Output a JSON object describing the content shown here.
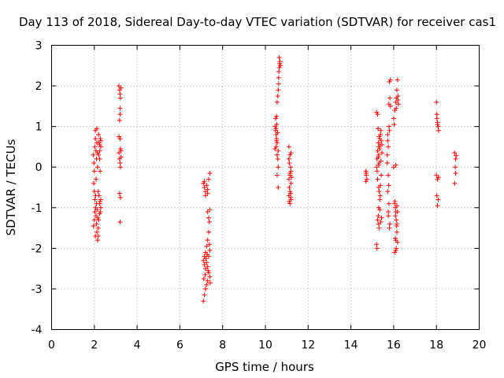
{
  "chart_data": {
    "type": "scatter",
    "title": "Day 113 of 2018, Sidereal Day-to-day VTEC variation (SDTVAR) for receiver cas1",
    "xlabel": "GPS time / hours",
    "ylabel": "SDTVAR / TECUs",
    "xlim": [
      0,
      20
    ],
    "ylim": [
      -4,
      3
    ],
    "xticks": [
      0,
      2,
      4,
      6,
      8,
      10,
      12,
      14,
      16,
      18,
      20
    ],
    "yticks": [
      -4,
      -3,
      -2,
      -1,
      0,
      1,
      2,
      3
    ],
    "grid": true,
    "marker": "+",
    "color": "#ff0000",
    "series": [
      {
        "name": "SDTVAR",
        "points": [
          [
            1.95,
            0.3
          ],
          [
            1.98,
            0.1
          ],
          [
            2.0,
            -0.1
          ],
          [
            2.02,
            0.5
          ],
          [
            2.05,
            0.9
          ],
          [
            2.05,
            0.7
          ],
          [
            2.08,
            0.4
          ],
          [
            2.1,
            0.2
          ],
          [
            2.12,
            0.6
          ],
          [
            2.15,
            0.0
          ],
          [
            1.97,
            -0.4
          ],
          [
            2.0,
            -0.6
          ],
          [
            2.03,
            -0.8
          ],
          [
            2.06,
            -1.0
          ],
          [
            2.08,
            -1.2
          ],
          [
            2.1,
            -1.4
          ],
          [
            2.12,
            -1.6
          ],
          [
            2.15,
            -1.8
          ],
          [
            2.18,
            -1.5
          ],
          [
            2.2,
            -1.3
          ],
          [
            2.0,
            -1.3
          ],
          [
            1.96,
            -1.45
          ],
          [
            2.02,
            -1.1
          ],
          [
            2.06,
            -0.7
          ],
          [
            2.1,
            -0.9
          ],
          [
            2.13,
            -1.05
          ],
          [
            2.16,
            -1.25
          ],
          [
            2.05,
            -1.7
          ],
          [
            2.18,
            -1.7
          ],
          [
            2.08,
            -0.3
          ],
          [
            2.2,
            0.8
          ],
          [
            2.22,
            0.6
          ],
          [
            2.25,
            0.4
          ],
          [
            2.28,
            0.7
          ],
          [
            2.3,
            0.5
          ],
          [
            2.25,
            0.2
          ],
          [
            2.27,
            -0.1
          ],
          [
            2.3,
            0.65
          ],
          [
            2.2,
            0.3
          ],
          [
            2.24,
            0.55
          ],
          [
            2.22,
            -0.7
          ],
          [
            2.25,
            -0.9
          ],
          [
            2.28,
            -1.1
          ],
          [
            2.3,
            -1.0
          ],
          [
            2.26,
            -0.85
          ],
          [
            2.24,
            -1.15
          ],
          [
            2.3,
            -0.8
          ],
          [
            2.18,
            -0.6
          ],
          [
            2.15,
            0.35
          ],
          [
            2.12,
            0.95
          ],
          [
            3.15,
            2.0
          ],
          [
            3.18,
            1.9
          ],
          [
            3.2,
            1.8
          ],
          [
            3.22,
            1.7
          ],
          [
            3.25,
            1.95
          ],
          [
            3.2,
            1.45
          ],
          [
            3.18,
            1.15
          ],
          [
            3.15,
            0.75
          ],
          [
            3.2,
            0.7
          ],
          [
            3.22,
            0.45
          ],
          [
            3.25,
            0.4
          ],
          [
            3.18,
            0.2
          ],
          [
            3.2,
            0.1
          ],
          [
            3.22,
            0.0
          ],
          [
            3.25,
            0.25
          ],
          [
            3.18,
            -0.65
          ],
          [
            3.22,
            -0.75
          ],
          [
            3.2,
            -1.35
          ],
          [
            3.15,
            0.35
          ],
          [
            3.2,
            1.3
          ],
          [
            7.1,
            -0.4
          ],
          [
            7.15,
            -0.5
          ],
          [
            7.2,
            -0.6
          ],
          [
            7.25,
            -0.45
          ],
          [
            7.3,
            -0.55
          ],
          [
            7.35,
            -0.3
          ],
          [
            7.4,
            -0.15
          ],
          [
            7.2,
            -0.7
          ],
          [
            7.3,
            -0.65
          ],
          [
            7.15,
            -0.35
          ],
          [
            7.3,
            -1.1
          ],
          [
            7.35,
            -1.25
          ],
          [
            7.38,
            -1.35
          ],
          [
            7.4,
            -1.05
          ],
          [
            7.35,
            -1.6
          ],
          [
            7.3,
            -1.8
          ],
          [
            7.25,
            -1.95
          ],
          [
            7.2,
            -2.1
          ],
          [
            7.15,
            -2.2
          ],
          [
            7.1,
            -2.3
          ],
          [
            7.15,
            -2.4
          ],
          [
            7.2,
            -2.5
          ],
          [
            7.25,
            -2.35
          ],
          [
            7.3,
            -2.45
          ],
          [
            7.35,
            -2.6
          ],
          [
            7.4,
            -2.7
          ],
          [
            7.3,
            -2.8
          ],
          [
            7.25,
            -2.9
          ],
          [
            7.2,
            -3.0
          ],
          [
            7.15,
            -3.15
          ],
          [
            7.1,
            -3.3
          ],
          [
            7.35,
            -2.2
          ],
          [
            7.4,
            -2.05
          ],
          [
            7.38,
            -1.9
          ],
          [
            7.42,
            -2.85
          ],
          [
            7.28,
            -2.15
          ],
          [
            7.22,
            -2.25
          ],
          [
            7.32,
            -2.55
          ],
          [
            7.18,
            -2.65
          ],
          [
            7.12,
            -2.75
          ],
          [
            10.45,
            1.0
          ],
          [
            10.48,
            0.9
          ],
          [
            10.5,
            0.8
          ],
          [
            10.52,
            0.7
          ],
          [
            10.55,
            0.6
          ],
          [
            10.5,
            0.5
          ],
          [
            10.48,
            1.2
          ],
          [
            10.52,
            1.25
          ],
          [
            10.55,
            0.3
          ],
          [
            10.58,
            0.2
          ],
          [
            10.6,
            0.0
          ],
          [
            10.55,
            -0.2
          ],
          [
            10.6,
            -0.5
          ],
          [
            10.55,
            1.6
          ],
          [
            10.6,
            1.9
          ],
          [
            10.62,
            2.2
          ],
          [
            10.65,
            2.45
          ],
          [
            10.68,
            2.6
          ],
          [
            10.65,
            2.7
          ],
          [
            10.7,
            2.5
          ],
          [
            10.58,
            1.75
          ],
          [
            10.62,
            2.05
          ],
          [
            10.5,
            0.95
          ],
          [
            10.53,
            1.05
          ],
          [
            10.57,
            0.85
          ],
          [
            10.45,
            0.45
          ],
          [
            10.63,
            2.35
          ],
          [
            10.67,
            2.55
          ],
          [
            10.52,
            0.65
          ],
          [
            10.6,
            0.4
          ],
          [
            11.1,
            0.5
          ],
          [
            11.15,
            0.3
          ],
          [
            11.12,
            0.1
          ],
          [
            11.18,
            0.0
          ],
          [
            11.2,
            -0.1
          ],
          [
            11.15,
            -0.2
          ],
          [
            11.1,
            -0.3
          ],
          [
            11.2,
            -0.4
          ],
          [
            11.15,
            -0.6
          ],
          [
            11.1,
            -0.7
          ],
          [
            11.2,
            -0.8
          ],
          [
            11.15,
            -0.9
          ],
          [
            11.18,
            -0.75
          ],
          [
            11.12,
            -0.5
          ],
          [
            11.22,
            -0.25
          ],
          [
            11.1,
            0.2
          ],
          [
            11.2,
            0.35
          ],
          [
            11.15,
            -0.15
          ],
          [
            11.12,
            -0.85
          ],
          [
            11.18,
            -0.65
          ],
          [
            14.7,
            -0.1
          ],
          [
            14.72,
            -0.2
          ],
          [
            14.75,
            -0.3
          ],
          [
            14.7,
            -0.35
          ],
          [
            14.72,
            -0.15
          ],
          [
            15.2,
            0.0
          ],
          [
            15.22,
            0.2
          ],
          [
            15.25,
            0.4
          ],
          [
            15.28,
            0.6
          ],
          [
            15.3,
            0.5
          ],
          [
            15.3,
            0.3
          ],
          [
            15.32,
            0.1
          ],
          [
            15.35,
            0.7
          ],
          [
            15.38,
            0.8
          ],
          [
            15.4,
            0.9
          ],
          [
            15.42,
            0.65
          ],
          [
            15.35,
            0.45
          ],
          [
            15.28,
            0.25
          ],
          [
            15.22,
            -0.1
          ],
          [
            15.25,
            -0.3
          ],
          [
            15.3,
            -0.5
          ],
          [
            15.32,
            -0.6
          ],
          [
            15.35,
            -0.8
          ],
          [
            15.3,
            -1.0
          ],
          [
            15.28,
            -1.2
          ],
          [
            15.25,
            -1.3
          ],
          [
            15.3,
            -1.4
          ],
          [
            15.32,
            -1.5
          ],
          [
            15.2,
            -1.9
          ],
          [
            15.22,
            -2.0
          ],
          [
            15.25,
            1.3
          ],
          [
            15.2,
            1.35
          ],
          [
            15.4,
            0.15
          ],
          [
            15.42,
            -0.2
          ],
          [
            15.38,
            -0.45
          ],
          [
            15.35,
            -1.05
          ],
          [
            15.4,
            -1.35
          ],
          [
            15.45,
            0.55
          ],
          [
            15.45,
            0.35
          ],
          [
            15.33,
            0.75
          ],
          [
            15.27,
            0.95
          ],
          [
            15.37,
            -0.7
          ],
          [
            15.43,
            -1.25
          ],
          [
            15.3,
            0.05
          ],
          [
            15.36,
            0.55
          ],
          [
            15.7,
            0.3
          ],
          [
            15.75,
            0.5
          ],
          [
            15.72,
            0.8
          ],
          [
            15.78,
            1.0
          ],
          [
            15.7,
            0.1
          ],
          [
            15.75,
            -0.2
          ],
          [
            15.72,
            -0.6
          ],
          [
            15.78,
            -0.9
          ],
          [
            15.75,
            -1.2
          ],
          [
            15.8,
            -1.5
          ],
          [
            15.85,
            1.5
          ],
          [
            15.82,
            1.7
          ],
          [
            15.8,
            2.1
          ],
          [
            15.85,
            2.15
          ],
          [
            15.78,
            1.55
          ],
          [
            15.82,
            -1.4
          ],
          [
            15.75,
            -1.1
          ],
          [
            15.72,
            0.65
          ],
          [
            15.8,
            0.9
          ],
          [
            15.77,
            -0.45
          ],
          [
            16.0,
            0.0
          ],
          [
            16.05,
            -0.9
          ],
          [
            16.08,
            -1.0
          ],
          [
            16.1,
            -1.1
          ],
          [
            16.12,
            -1.3
          ],
          [
            16.15,
            -1.6
          ],
          [
            16.1,
            -1.8
          ],
          [
            16.12,
            -2.0
          ],
          [
            16.05,
            -2.1
          ],
          [
            16.08,
            -1.2
          ],
          [
            16.15,
            -1.4
          ],
          [
            16.18,
            -1.1
          ],
          [
            16.0,
            1.2
          ],
          [
            16.05,
            1.4
          ],
          [
            16.1,
            1.6
          ],
          [
            16.12,
            1.7
          ],
          [
            16.15,
            1.9
          ],
          [
            16.18,
            2.15
          ],
          [
            16.2,
            1.65
          ],
          [
            16.22,
            1.55
          ],
          [
            16.1,
            0.05
          ],
          [
            16.15,
            -0.95
          ],
          [
            16.08,
            -1.75
          ],
          [
            16.18,
            -1.85
          ],
          [
            16.02,
            1.05
          ],
          [
            16.12,
            1.45
          ],
          [
            16.2,
            1.75
          ],
          [
            16.06,
            -0.85
          ],
          [
            16.14,
            -1.45
          ],
          [
            16.1,
            -2.05
          ],
          [
            18.0,
            1.6
          ],
          [
            18.02,
            1.3
          ],
          [
            18.05,
            1.1
          ],
          [
            18.08,
            1.0
          ],
          [
            18.1,
            0.9
          ],
          [
            18.05,
            1.05
          ],
          [
            18.02,
            1.2
          ],
          [
            18.0,
            -0.2
          ],
          [
            18.05,
            -0.3
          ],
          [
            18.02,
            -0.7
          ],
          [
            18.08,
            -0.8
          ],
          [
            18.05,
            -0.95
          ],
          [
            18.1,
            -0.25
          ],
          [
            18.85,
            0.35
          ],
          [
            18.9,
            0.2
          ],
          [
            18.88,
            0.0
          ],
          [
            18.9,
            -0.15
          ],
          [
            18.85,
            -0.4
          ],
          [
            18.92,
            0.28
          ]
        ]
      }
    ]
  }
}
